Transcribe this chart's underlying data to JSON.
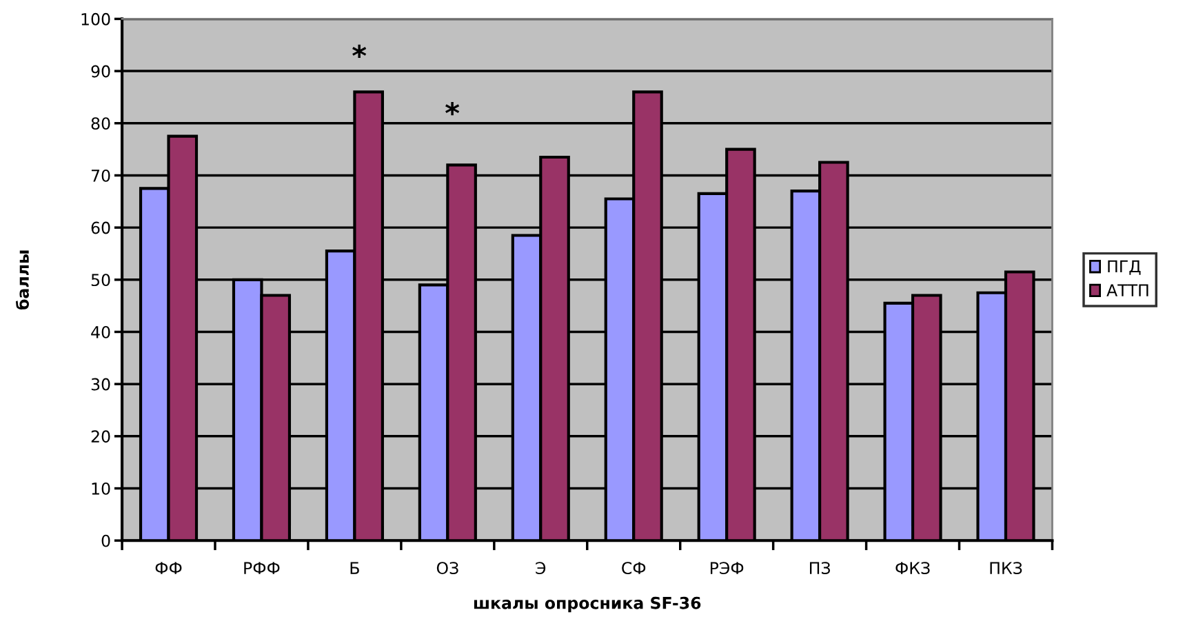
{
  "chart_data": {
    "type": "bar",
    "xlabel": "шкалы опросника SF-36",
    "ylabel": "баллы",
    "categories": [
      "ФФ",
      "РФФ",
      "Б",
      "ОЗ",
      "Э",
      "СФ",
      "РЭФ",
      "ПЗ",
      "ФКЗ",
      "ПКЗ"
    ],
    "series": [
      {
        "name": "ПГД",
        "color": "#9999ff",
        "values": [
          67.5,
          50,
          55.5,
          49,
          58.5,
          65.5,
          66.5,
          67,
          45.5,
          47.5
        ]
      },
      {
        "name": "АТТП",
        "color": "#993366",
        "values": [
          77.5,
          47,
          86,
          72,
          73.5,
          86,
          75,
          72.5,
          47,
          51.5
        ]
      }
    ],
    "ylim": [
      0,
      100
    ],
    "yticks": [
      0,
      10,
      20,
      30,
      40,
      50,
      60,
      70,
      80,
      90,
      100
    ],
    "grid": "y",
    "legend": "right",
    "annotations": [
      "*",
      "*"
    ]
  }
}
